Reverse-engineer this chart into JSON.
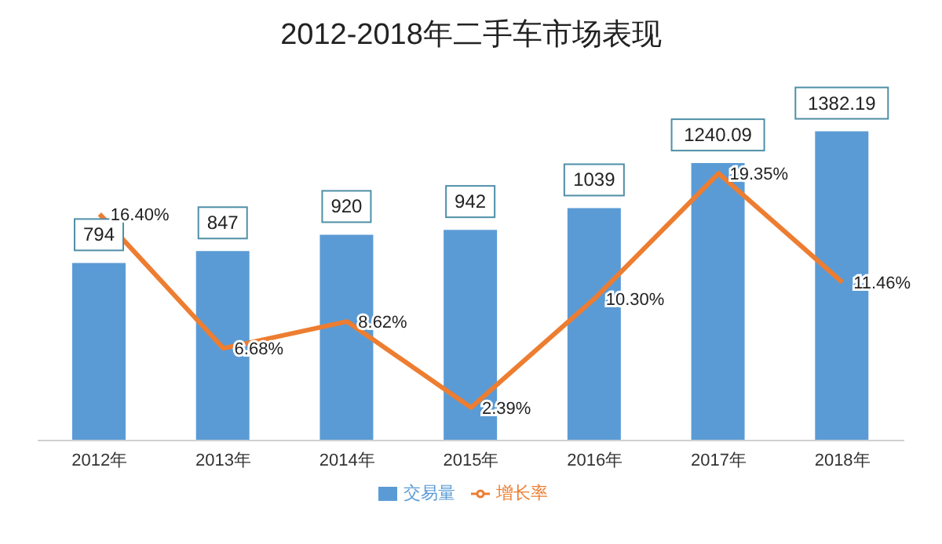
{
  "chart_data": {
    "type": "bar",
    "title": "2012-2018年二手车市场表现",
    "categories": [
      "2012年",
      "2013年",
      "2014年",
      "2015年",
      "2016年",
      "2017年",
      "2018年"
    ],
    "legend": "bottom",
    "grid": false,
    "series": [
      {
        "name": "交易量",
        "color": "#5b9bd5",
        "values": [
          794,
          847,
          920,
          942,
          1039,
          1240.09,
          1382.19
        ],
        "value_labels": [
          "794",
          "847",
          "920",
          "942",
          "1039",
          "1240.09",
          "1382.19"
        ]
      },
      {
        "name": "增长率",
        "type": "line",
        "axis": "y2",
        "color": "#ed7d31",
        "marker": "none",
        "values": [
          16.4,
          6.68,
          8.62,
          2.39,
          10.3,
          19.35,
          11.46
        ],
        "value_labels": [
          "16.40%",
          "6.68%",
          "8.62%",
          "2.39%",
          "10.30%",
          "19.35%",
          "11.46%"
        ]
      }
    ]
  }
}
